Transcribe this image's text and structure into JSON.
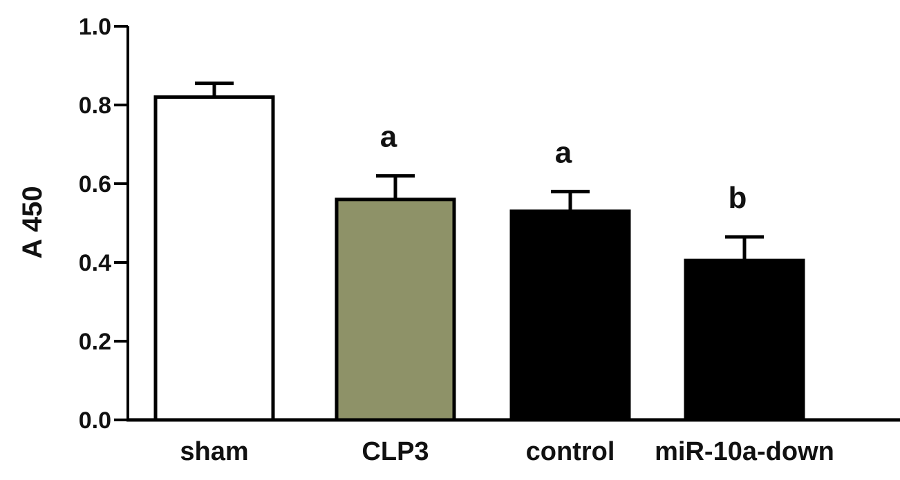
{
  "chart_data": {
    "type": "bar",
    "title": "",
    "xlabel": "",
    "ylabel": "A 450",
    "ylim": [
      0,
      1.0
    ],
    "yticks": [
      "0.0",
      "0.2",
      "0.4",
      "0.6",
      "0.8",
      "1.0"
    ],
    "categories": [
      "sham",
      "CLP3",
      "control",
      "miR-10a-down"
    ],
    "series": [
      {
        "values": [
          0.82,
          0.56,
          0.53,
          0.405
        ],
        "errors": [
          0.035,
          0.06,
          0.05,
          0.06
        ],
        "fills": [
          "#ffffff",
          "#8e9268",
          "#000000",
          "#000000"
        ],
        "annotations": [
          "",
          "a",
          "a",
          "b"
        ]
      }
    ],
    "grid": false,
    "legend": "none"
  }
}
